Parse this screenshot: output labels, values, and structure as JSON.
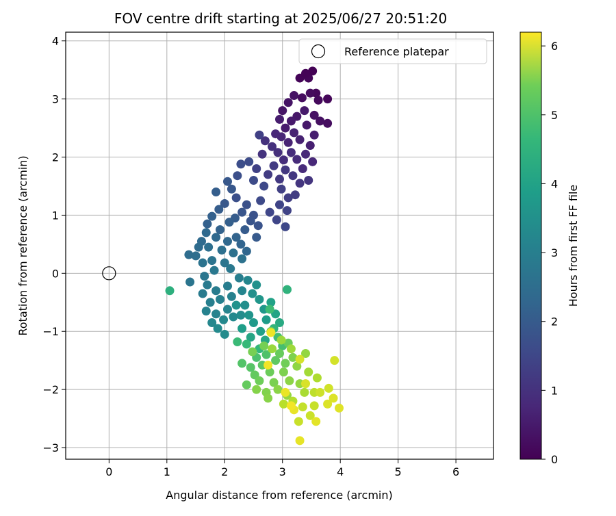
{
  "chart_data": {
    "type": "scatter",
    "title": "FOV centre drift starting at 2025/06/27 20:51:20",
    "xlabel": "Angular distance from reference (arcmin)",
    "ylabel": "Rotation from reference (arcmin)",
    "xlim": [
      -0.75,
      6.65
    ],
    "ylim": [
      -3.2,
      4.15
    ],
    "xticks": [
      0,
      1,
      2,
      3,
      4,
      5,
      6
    ],
    "yticks": [
      -3,
      -2,
      -1,
      0,
      1,
      2,
      3,
      4
    ],
    "grid": true,
    "legend": {
      "placement": "top-right",
      "entries": [
        "Reference platepar"
      ]
    },
    "reference_point": {
      "name": "Reference platepar",
      "x": 0,
      "y": 0,
      "marker": "hollow-circle"
    },
    "colorbar": {
      "label": "Hours from first FF file",
      "range": [
        0,
        6.2
      ],
      "ticks": [
        0,
        1,
        2,
        3,
        4,
        5,
        6
      ],
      "colormap": "viridis"
    },
    "series": [
      {
        "color_by": "hours",
        "points": [
          {
            "x": 3.52,
            "y": 3.48,
            "t": 0.02
          },
          {
            "x": 3.3,
            "y": 3.36,
            "t": 0.05
          },
          {
            "x": 3.45,
            "y": 3.36,
            "t": 0.08
          },
          {
            "x": 3.4,
            "y": 3.44,
            "t": 0.03
          },
          {
            "x": 3.78,
            "y": 3.0,
            "t": 0.1
          },
          {
            "x": 3.58,
            "y": 3.1,
            "t": 0.12
          },
          {
            "x": 3.62,
            "y": 2.98,
            "t": 0.15
          },
          {
            "x": 3.48,
            "y": 3.1,
            "t": 0.18
          },
          {
            "x": 3.34,
            "y": 3.02,
            "t": 0.2
          },
          {
            "x": 3.78,
            "y": 2.58,
            "t": 0.22
          },
          {
            "x": 3.65,
            "y": 2.62,
            "t": 0.25
          },
          {
            "x": 3.55,
            "y": 2.72,
            "t": 0.28
          },
          {
            "x": 3.2,
            "y": 3.06,
            "t": 0.3
          },
          {
            "x": 3.1,
            "y": 2.94,
            "t": 0.33
          },
          {
            "x": 3.0,
            "y": 2.8,
            "t": 0.35
          },
          {
            "x": 3.25,
            "y": 2.7,
            "t": 0.38
          },
          {
            "x": 3.42,
            "y": 2.55,
            "t": 0.4
          },
          {
            "x": 3.38,
            "y": 2.8,
            "t": 0.42
          },
          {
            "x": 3.15,
            "y": 2.62,
            "t": 0.45
          },
          {
            "x": 3.05,
            "y": 2.5,
            "t": 0.48
          },
          {
            "x": 2.95,
            "y": 2.65,
            "t": 0.5
          },
          {
            "x": 3.55,
            "y": 2.38,
            "t": 0.52
          },
          {
            "x": 3.48,
            "y": 2.2,
            "t": 0.55
          },
          {
            "x": 3.3,
            "y": 2.3,
            "t": 0.58
          },
          {
            "x": 3.2,
            "y": 2.42,
            "t": 0.6
          },
          {
            "x": 3.1,
            "y": 2.25,
            "t": 0.62
          },
          {
            "x": 2.98,
            "y": 2.35,
            "t": 0.65
          },
          {
            "x": 2.88,
            "y": 2.4,
            "t": 0.68
          },
          {
            "x": 3.4,
            "y": 2.05,
            "t": 0.7
          },
          {
            "x": 3.52,
            "y": 1.92,
            "t": 0.72
          },
          {
            "x": 3.35,
            "y": 1.8,
            "t": 0.75
          },
          {
            "x": 3.25,
            "y": 1.96,
            "t": 0.78
          },
          {
            "x": 3.15,
            "y": 2.08,
            "t": 0.8
          },
          {
            "x": 3.02,
            "y": 1.95,
            "t": 0.82
          },
          {
            "x": 2.92,
            "y": 2.08,
            "t": 0.85
          },
          {
            "x": 2.82,
            "y": 2.18,
            "t": 0.88
          },
          {
            "x": 2.7,
            "y": 2.28,
            "t": 0.9
          },
          {
            "x": 2.65,
            "y": 2.05,
            "t": 0.92
          },
          {
            "x": 3.45,
            "y": 1.6,
            "t": 0.95
          },
          {
            "x": 3.3,
            "y": 1.55,
            "t": 0.98
          },
          {
            "x": 3.18,
            "y": 1.68,
            "t": 1.0
          },
          {
            "x": 3.05,
            "y": 1.78,
            "t": 1.02
          },
          {
            "x": 2.95,
            "y": 1.62,
            "t": 1.05
          },
          {
            "x": 2.85,
            "y": 1.85,
            "t": 1.08
          },
          {
            "x": 2.75,
            "y": 1.7,
            "t": 1.1
          },
          {
            "x": 3.22,
            "y": 1.35,
            "t": 1.12
          },
          {
            "x": 3.1,
            "y": 1.3,
            "t": 1.15
          },
          {
            "x": 2.98,
            "y": 1.45,
            "t": 1.18
          },
          {
            "x": 2.6,
            "y": 2.38,
            "t": 1.2
          },
          {
            "x": 2.55,
            "y": 1.8,
            "t": 1.22
          },
          {
            "x": 3.08,
            "y": 1.08,
            "t": 1.25
          },
          {
            "x": 2.95,
            "y": 1.18,
            "t": 1.28
          },
          {
            "x": 2.9,
            "y": 0.92,
            "t": 1.3
          },
          {
            "x": 2.78,
            "y": 1.05,
            "t": 1.32
          },
          {
            "x": 3.05,
            "y": 0.8,
            "t": 1.35
          },
          {
            "x": 2.68,
            "y": 1.5,
            "t": 1.38
          },
          {
            "x": 2.62,
            "y": 1.25,
            "t": 1.4
          },
          {
            "x": 2.5,
            "y": 1.6,
            "t": 1.42
          },
          {
            "x": 2.42,
            "y": 1.92,
            "t": 1.45
          },
          {
            "x": 2.28,
            "y": 1.88,
            "t": 1.48
          },
          {
            "x": 2.22,
            "y": 1.68,
            "t": 1.5
          },
          {
            "x": 2.2,
            "y": 1.3,
            "t": 1.52
          },
          {
            "x": 2.38,
            "y": 1.18,
            "t": 1.55
          },
          {
            "x": 2.5,
            "y": 1.0,
            "t": 1.58
          },
          {
            "x": 2.58,
            "y": 0.82,
            "t": 1.6
          },
          {
            "x": 2.45,
            "y": 0.9,
            "t": 1.62
          },
          {
            "x": 2.3,
            "y": 1.05,
            "t": 1.65
          },
          {
            "x": 2.12,
            "y": 1.45,
            "t": 1.68
          },
          {
            "x": 2.05,
            "y": 1.58,
            "t": 1.7
          },
          {
            "x": 2.0,
            "y": 1.2,
            "t": 1.72
          },
          {
            "x": 2.55,
            "y": 0.62,
            "t": 1.75
          },
          {
            "x": 2.35,
            "y": 0.75,
            "t": 1.78
          },
          {
            "x": 2.18,
            "y": 0.95,
            "t": 1.8
          },
          {
            "x": 1.9,
            "y": 1.1,
            "t": 1.82
          },
          {
            "x": 1.85,
            "y": 1.4,
            "t": 1.85
          },
          {
            "x": 2.08,
            "y": 0.88,
            "t": 1.88
          },
          {
            "x": 1.78,
            "y": 0.98,
            "t": 1.9
          },
          {
            "x": 1.7,
            "y": 0.85,
            "t": 1.92
          },
          {
            "x": 1.92,
            "y": 0.75,
            "t": 1.95
          },
          {
            "x": 2.2,
            "y": 0.62,
            "t": 1.98
          },
          {
            "x": 2.28,
            "y": 0.5,
            "t": 2.0
          },
          {
            "x": 2.38,
            "y": 0.38,
            "t": 2.05
          },
          {
            "x": 2.05,
            "y": 0.55,
            "t": 2.08
          },
          {
            "x": 1.85,
            "y": 0.62,
            "t": 2.1
          },
          {
            "x": 1.68,
            "y": 0.7,
            "t": 2.12
          },
          {
            "x": 1.6,
            "y": 0.55,
            "t": 2.15
          },
          {
            "x": 1.55,
            "y": 0.45,
            "t": 2.18
          },
          {
            "x": 1.38,
            "y": 0.32,
            "t": 2.2
          },
          {
            "x": 1.5,
            "y": 0.3,
            "t": 2.22
          },
          {
            "x": 1.72,
            "y": 0.45,
            "t": 2.25
          },
          {
            "x": 1.95,
            "y": 0.4,
            "t": 2.28
          },
          {
            "x": 2.15,
            "y": 0.35,
            "t": 2.3
          },
          {
            "x": 2.3,
            "y": 0.25,
            "t": 2.32
          },
          {
            "x": 1.62,
            "y": 0.18,
            "t": 2.35
          },
          {
            "x": 1.78,
            "y": 0.22,
            "t": 2.38
          },
          {
            "x": 2.0,
            "y": 0.18,
            "t": 2.4
          },
          {
            "x": 1.4,
            "y": -0.15,
            "t": 2.42
          },
          {
            "x": 1.65,
            "y": -0.05,
            "t": 2.45
          },
          {
            "x": 1.82,
            "y": 0.05,
            "t": 2.48
          },
          {
            "x": 2.1,
            "y": 0.08,
            "t": 2.5
          },
          {
            "x": 1.7,
            "y": -0.2,
            "t": 2.55
          },
          {
            "x": 1.62,
            "y": -0.35,
            "t": 2.58
          },
          {
            "x": 1.85,
            "y": -0.3,
            "t": 2.6
          },
          {
            "x": 2.05,
            "y": -0.22,
            "t": 2.62
          },
          {
            "x": 2.25,
            "y": -0.08,
            "t": 2.65
          },
          {
            "x": 1.75,
            "y": -0.5,
            "t": 2.68
          },
          {
            "x": 1.92,
            "y": -0.45,
            "t": 2.7
          },
          {
            "x": 2.12,
            "y": -0.4,
            "t": 2.72
          },
          {
            "x": 1.68,
            "y": -0.65,
            "t": 2.75
          },
          {
            "x": 1.85,
            "y": -0.7,
            "t": 2.78
          },
          {
            "x": 2.05,
            "y": -0.62,
            "t": 2.8
          },
          {
            "x": 2.3,
            "y": -0.3,
            "t": 2.82
          },
          {
            "x": 2.4,
            "y": -0.12,
            "t": 2.85
          },
          {
            "x": 1.78,
            "y": -0.85,
            "t": 2.88
          },
          {
            "x": 1.98,
            "y": -0.8,
            "t": 2.9
          },
          {
            "x": 2.15,
            "y": -0.75,
            "t": 2.92
          },
          {
            "x": 1.88,
            "y": -0.95,
            "t": 2.95
          },
          {
            "x": 2.0,
            "y": -1.05,
            "t": 2.98
          },
          {
            "x": 2.28,
            "y": -0.72,
            "t": 3.0
          },
          {
            "x": 2.35,
            "y": -0.55,
            "t": 3.05
          },
          {
            "x": 2.48,
            "y": -0.35,
            "t": 3.1
          },
          {
            "x": 2.55,
            "y": -0.2,
            "t": 3.12
          },
          {
            "x": 2.2,
            "y": -0.55,
            "t": 3.15
          },
          {
            "x": 2.42,
            "y": -0.72,
            "t": 3.2
          },
          {
            "x": 2.6,
            "y": -0.45,
            "t": 3.25
          },
          {
            "x": 2.68,
            "y": -0.62,
            "t": 3.3
          },
          {
            "x": 2.5,
            "y": -0.85,
            "t": 3.35
          },
          {
            "x": 2.72,
            "y": -0.8,
            "t": 3.4
          },
          {
            "x": 2.3,
            "y": -0.95,
            "t": 3.45
          },
          {
            "x": 2.62,
            "y": -1.0,
            "t": 3.5
          },
          {
            "x": 2.8,
            "y": -0.5,
            "t": 3.55
          },
          {
            "x": 2.88,
            "y": -0.7,
            "t": 3.6
          },
          {
            "x": 2.45,
            "y": -1.1,
            "t": 3.65
          },
          {
            "x": 2.7,
            "y": -1.15,
            "t": 3.7
          },
          {
            "x": 2.95,
            "y": -0.85,
            "t": 3.75
          },
          {
            "x": 1.05,
            "y": -0.3,
            "t": 3.9
          },
          {
            "x": 3.08,
            "y": -0.28,
            "t": 4.0
          },
          {
            "x": 2.85,
            "y": -0.95,
            "t": 4.05
          },
          {
            "x": 2.6,
            "y": -1.3,
            "t": 4.1
          },
          {
            "x": 2.38,
            "y": -1.22,
            "t": 4.15
          },
          {
            "x": 2.22,
            "y": -1.18,
            "t": 4.2
          },
          {
            "x": 2.78,
            "y": -0.62,
            "t": 4.25
          },
          {
            "x": 2.92,
            "y": -1.1,
            "t": 4.3
          },
          {
            "x": 3.0,
            "y": -1.25,
            "t": 4.35
          },
          {
            "x": 2.55,
            "y": -1.45,
            "t": 4.4
          },
          {
            "x": 2.72,
            "y": -1.4,
            "t": 4.45
          },
          {
            "x": 2.3,
            "y": -1.55,
            "t": 4.5
          },
          {
            "x": 2.45,
            "y": -1.62,
            "t": 4.55
          },
          {
            "x": 2.65,
            "y": -1.58,
            "t": 4.6
          },
          {
            "x": 2.88,
            "y": -1.5,
            "t": 4.65
          },
          {
            "x": 2.52,
            "y": -1.75,
            "t": 4.7
          },
          {
            "x": 2.38,
            "y": -1.92,
            "t": 4.72
          },
          {
            "x": 2.95,
            "y": -1.38,
            "t": 4.75
          },
          {
            "x": 3.1,
            "y": -1.2,
            "t": 4.78
          },
          {
            "x": 2.78,
            "y": -1.7,
            "t": 4.8
          },
          {
            "x": 2.6,
            "y": -1.85,
            "t": 4.82
          },
          {
            "x": 3.05,
            "y": -1.55,
            "t": 4.85
          },
          {
            "x": 2.8,
            "y": -1.0,
            "t": 4.88
          },
          {
            "x": 2.68,
            "y": -1.25,
            "t": 4.9
          },
          {
            "x": 2.48,
            "y": -1.35,
            "t": 4.92
          },
          {
            "x": 2.85,
            "y": -1.88,
            "t": 4.95
          },
          {
            "x": 3.02,
            "y": -1.7,
            "t": 4.98
          },
          {
            "x": 3.18,
            "y": -1.45,
            "t": 5.0
          },
          {
            "x": 2.72,
            "y": -2.05,
            "t": 5.02
          },
          {
            "x": 2.55,
            "y": -2.0,
            "t": 5.05
          },
          {
            "x": 2.75,
            "y": -2.15,
            "t": 5.08
          },
          {
            "x": 2.92,
            "y": -2.0,
            "t": 5.1
          },
          {
            "x": 3.12,
            "y": -1.85,
            "t": 5.12
          },
          {
            "x": 3.25,
            "y": -1.6,
            "t": 5.15
          },
          {
            "x": 3.4,
            "y": -1.38,
            "t": 5.18
          },
          {
            "x": 3.3,
            "y": -1.9,
            "t": 5.2
          },
          {
            "x": 3.08,
            "y": -2.1,
            "t": 5.22
          },
          {
            "x": 2.82,
            "y": -1.3,
            "t": 5.25
          },
          {
            "x": 2.98,
            "y": -1.15,
            "t": 5.28
          },
          {
            "x": 3.15,
            "y": -1.3,
            "t": 5.3
          },
          {
            "x": 3.45,
            "y": -1.7,
            "t": 5.35
          },
          {
            "x": 3.38,
            "y": -2.05,
            "t": 5.4
          },
          {
            "x": 3.6,
            "y": -1.8,
            "t": 5.45
          },
          {
            "x": 3.18,
            "y": -2.2,
            "t": 5.5
          },
          {
            "x": 3.02,
            "y": -2.25,
            "t": 5.55
          },
          {
            "x": 3.55,
            "y": -2.05,
            "t": 5.6
          },
          {
            "x": 3.35,
            "y": -2.3,
            "t": 5.65
          },
          {
            "x": 3.55,
            "y": -2.28,
            "t": 5.68
          },
          {
            "x": 3.28,
            "y": -2.55,
            "t": 5.7
          },
          {
            "x": 3.48,
            "y": -2.45,
            "t": 5.72
          },
          {
            "x": 3.65,
            "y": -2.05,
            "t": 5.75
          },
          {
            "x": 3.8,
            "y": -1.98,
            "t": 5.78
          },
          {
            "x": 3.9,
            "y": -1.5,
            "t": 5.8
          },
          {
            "x": 3.3,
            "y": -1.48,
            "t": 5.82
          },
          {
            "x": 3.4,
            "y": -1.9,
            "t": 5.85
          },
          {
            "x": 3.78,
            "y": -2.25,
            "t": 5.88
          },
          {
            "x": 3.88,
            "y": -2.15,
            "t": 5.9
          },
          {
            "x": 3.98,
            "y": -2.32,
            "t": 5.92
          },
          {
            "x": 3.58,
            "y": -2.55,
            "t": 5.95
          },
          {
            "x": 3.3,
            "y": -2.88,
            "t": 5.98
          },
          {
            "x": 3.2,
            "y": -2.35,
            "t": 6.0
          },
          {
            "x": 3.05,
            "y": -2.05,
            "t": 6.02
          },
          {
            "x": 2.8,
            "y": -1.02,
            "t": 6.05
          },
          {
            "x": 2.75,
            "y": -1.58,
            "t": 6.08
          },
          {
            "x": 3.15,
            "y": -2.28,
            "t": 6.1
          }
        ]
      }
    ]
  }
}
